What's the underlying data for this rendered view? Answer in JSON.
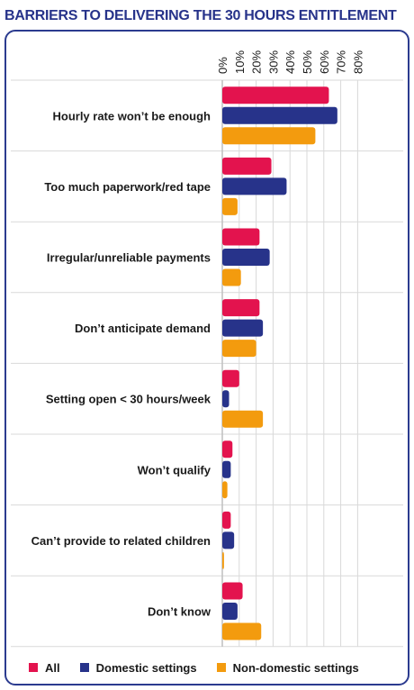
{
  "title": "BARRIERS TO DELIVERING THE 30 HOURS ENTITLEMENT",
  "colors": {
    "all": "#e3134e",
    "domestic": "#27338a",
    "non_domestic": "#f39b0e",
    "frame": "#2b3b8f",
    "grid": "#d9d9d9",
    "text": "#1a1a1a"
  },
  "chart_data": {
    "type": "bar",
    "orientation": "horizontal",
    "title": "BARRIERS TO DELIVERING THE 30 HOURS ENTITLEMENT",
    "categories": [
      "Hourly rate won’t be enough",
      "Too much paperwork/red tape",
      "Irregular/unreliable payments",
      "Don’t anticipate demand",
      "Setting open < 30 hours/week",
      "Won’t qualify",
      "Can’t provide to related children",
      "Don’t know"
    ],
    "series": [
      {
        "name": "All",
        "color": "#e3134e",
        "values": [
          63,
          29,
          22,
          22,
          10,
          6,
          5,
          12
        ]
      },
      {
        "name": "Domestic settings",
        "color": "#27338a",
        "values": [
          68,
          38,
          28,
          24,
          4,
          5,
          7,
          9
        ]
      },
      {
        "name": "Non-domestic settings",
        "color": "#f39b0e",
        "values": [
          55,
          9,
          11,
          20,
          24,
          3,
          1,
          23
        ]
      }
    ],
    "xlim": [
      0,
      80
    ],
    "ticks": [
      "0%",
      "10%",
      "20%",
      "30%",
      "40%",
      "50%",
      "60%",
      "70%",
      "80%"
    ],
    "grid": true,
    "legend_position": "bottom"
  }
}
